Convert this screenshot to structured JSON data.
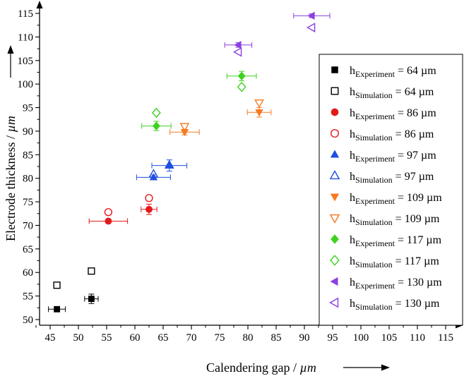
{
  "chart_data": {
    "type": "scatter",
    "xlabel": "Calendering gap / ",
    "xunit": "µm",
    "ylabel": "Electrode thickness / ",
    "yunit": "µm",
    "xlim": [
      40,
      117
    ],
    "ylim": [
      48.5,
      117
    ],
    "xticks": [
      45,
      50,
      55,
      60,
      65,
      70,
      75,
      80,
      85,
      90,
      95,
      100,
      105,
      110,
      115
    ],
    "yticks": [
      50,
      55,
      60,
      65,
      70,
      75,
      80,
      85,
      90,
      95,
      100,
      105,
      110,
      115
    ],
    "grid": false,
    "legend_position": "right",
    "series": [
      {
        "h": "h",
        "sub": "Experiment",
        "eq": " = 64 µm",
        "color": "#000000",
        "marker": "square",
        "filled": true,
        "points": [
          {
            "x": 46.2,
            "y": 52.2,
            "xerr": 1.5,
            "yerr": 0.5
          },
          {
            "x": 52.3,
            "y": 54.4,
            "xerr": 1.2,
            "yerr": 1.0
          }
        ]
      },
      {
        "h": "h",
        "sub": "Simulation",
        "eq": " = 64 µm",
        "color": "#000000",
        "marker": "square",
        "filled": false,
        "points": [
          {
            "x": 46.2,
            "y": 57.3
          },
          {
            "x": 52.3,
            "y": 60.3
          }
        ]
      },
      {
        "h": "h",
        "sub": "Experiment",
        "eq": " = 86 µm",
        "color": "#e31a1c",
        "marker": "circle",
        "filled": true,
        "points": [
          {
            "x": 55.3,
            "y": 70.9,
            "xerr": 3.4,
            "yerr": 0.4
          },
          {
            "x": 62.5,
            "y": 73.4,
            "xerr": 1.4,
            "yerr": 1.1
          }
        ]
      },
      {
        "h": "h",
        "sub": "Simulation",
        "eq": " = 86 µm",
        "color": "#e31a1c",
        "marker": "circle",
        "filled": false,
        "points": [
          {
            "x": 55.3,
            "y": 72.8
          },
          {
            "x": 62.5,
            "y": 75.8
          }
        ]
      },
      {
        "h": "h",
        "sub": "Experiment",
        "eq": " = 97 µm",
        "color": "#1f4fe0",
        "marker": "triangle-up",
        "filled": true,
        "points": [
          {
            "x": 63.3,
            "y": 80.2,
            "xerr": 3.0,
            "yerr": 0.5
          },
          {
            "x": 66.1,
            "y": 82.7,
            "xerr": 3.1,
            "yerr": 1.2
          }
        ]
      },
      {
        "h": "h",
        "sub": "Simulation",
        "eq": " = 97 µm",
        "color": "#1f4fe0",
        "marker": "triangle-up",
        "filled": false,
        "points": [
          {
            "x": 63.3,
            "y": 80.9
          },
          {
            "x": 66.1,
            "y": 82.8
          }
        ]
      },
      {
        "h": "h",
        "sub": "Experiment",
        "eq": " = 109 µm",
        "color": "#f57a22",
        "marker": "triangle-down",
        "filled": true,
        "points": [
          {
            "x": 68.8,
            "y": 89.8,
            "xerr": 2.6,
            "yerr": 0.6
          },
          {
            "x": 82.0,
            "y": 94.0,
            "xerr": 2.1,
            "yerr": 1.0
          }
        ]
      },
      {
        "h": "h",
        "sub": "Simulation",
        "eq": " = 109 µm",
        "color": "#f57a22",
        "marker": "triangle-down",
        "filled": false,
        "points": [
          {
            "x": 68.8,
            "y": 91.0
          },
          {
            "x": 82.0,
            "y": 96.0
          }
        ]
      },
      {
        "h": "h",
        "sub": "Experiment",
        "eq": " = 117 µm",
        "color": "#3fd11f",
        "marker": "diamond",
        "filled": true,
        "points": [
          {
            "x": 63.8,
            "y": 91.1,
            "xerr": 2.6,
            "yerr": 1.0
          },
          {
            "x": 78.9,
            "y": 101.7,
            "xerr": 2.6,
            "yerr": 1.0
          }
        ]
      },
      {
        "h": "h",
        "sub": "Simulation",
        "eq": " = 117 µm",
        "color": "#3fd11f",
        "marker": "diamond",
        "filled": false,
        "points": [
          {
            "x": 63.8,
            "y": 93.9
          },
          {
            "x": 78.9,
            "y": 99.4
          }
        ]
      },
      {
        "h": "h",
        "sub": "Experiment",
        "eq": " = 130 µm",
        "color": "#8a3fe0",
        "marker": "triangle-left",
        "filled": true,
        "points": [
          {
            "x": 78.3,
            "y": 108.3,
            "xerr": 2.4,
            "yerr": 0.5
          },
          {
            "x": 91.3,
            "y": 114.5,
            "xerr": 3.2,
            "yerr": 0.4
          }
        ]
      },
      {
        "h": "h",
        "sub": "Simulation",
        "eq": " = 130 µm",
        "color": "#8a3fe0",
        "marker": "triangle-left",
        "filled": false,
        "points": [
          {
            "x": 78.3,
            "y": 106.8
          },
          {
            "x": 91.3,
            "y": 112.0
          }
        ]
      }
    ]
  }
}
